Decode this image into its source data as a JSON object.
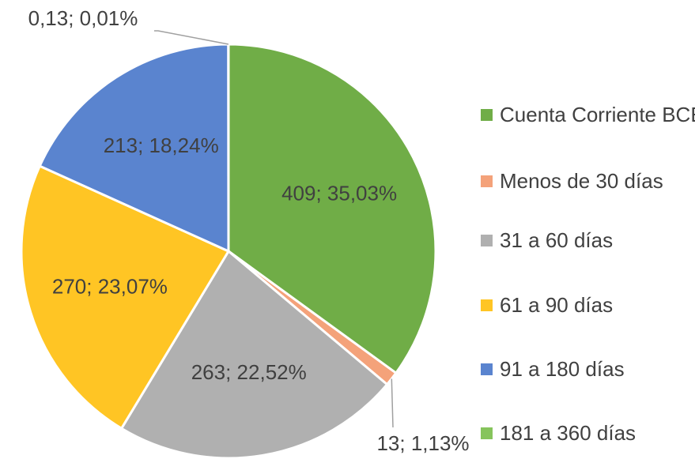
{
  "chart_data": {
    "type": "pie",
    "categories": [
      "Cuenta Corriente BCE",
      "Menos de 30 días",
      "31 a 60 días",
      "61 a 90 días",
      "91 a 180 días",
      "181 a 360 días"
    ],
    "values": [
      409,
      13,
      263,
      270,
      213,
      0.13
    ],
    "value_labels": [
      "409; 35,03%",
      "13; 1,13%",
      "263; 22,52%",
      "270; 23,07%",
      "213; 18,24%",
      "0,13; 0,01%"
    ],
    "colors": [
      "#70ad47",
      "#f4a27a",
      "#b0b0b0",
      "#ffc524",
      "#5a84cf",
      "#86c45c"
    ],
    "legend": "right"
  }
}
